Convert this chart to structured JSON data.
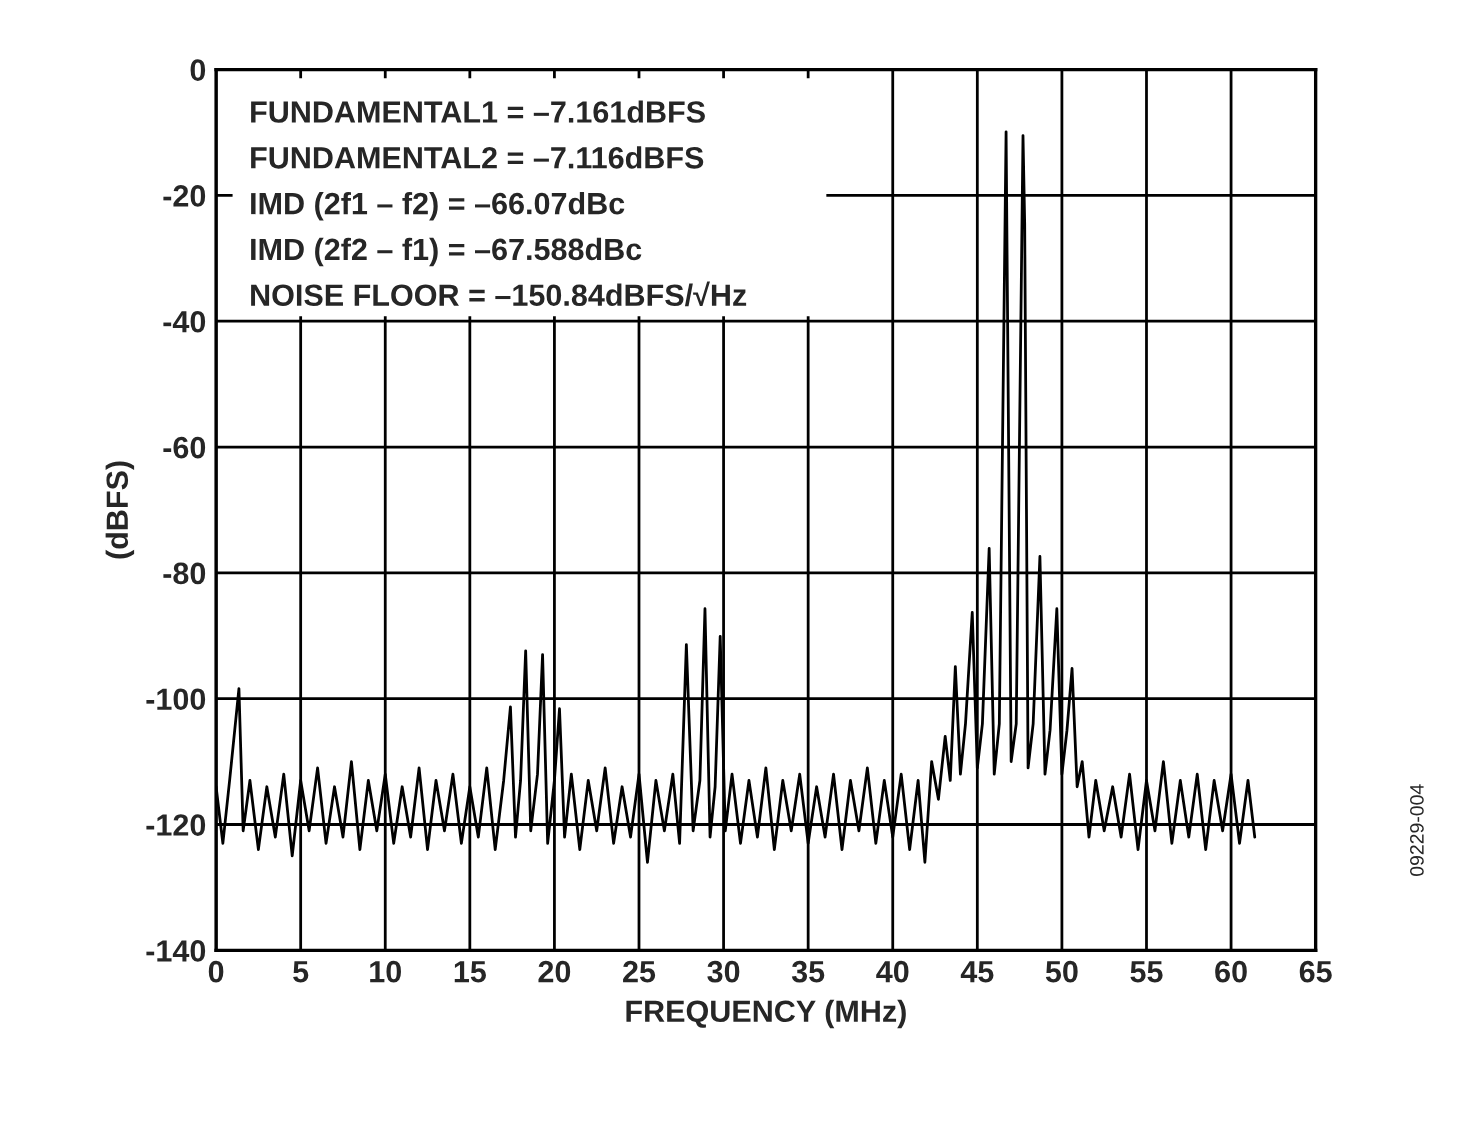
{
  "chart_data": {
    "type": "line",
    "xlabel": "FREQUENCY (MHz)",
    "ylabel": "(dBFS)",
    "xlim": [
      0,
      65
    ],
    "xticks": [
      0,
      5,
      10,
      15,
      20,
      25,
      30,
      35,
      40,
      45,
      50,
      55,
      60,
      65
    ],
    "ylim": [
      -140,
      0
    ],
    "yticks": [
      -140,
      -120,
      -100,
      -80,
      -60,
      -40,
      -20,
      0
    ],
    "grid": true,
    "legend": false,
    "marker": "none",
    "line_style": "solid",
    "annotations": [
      "FUNDAMENTAL1 = –7.161dBFS",
      "FUNDAMENTAL2 = –7.116dBFS",
      "IMD (2f1 – f2) = –66.07dBc",
      "IMD (2f2 – f1) = –67.588dBc",
      "NOISE FLOOR = –150.84dBFS/√Hz",
      "09229-004"
    ],
    "series": [
      {
        "color": "#000000",
        "x": [
          0,
          0.4,
          0.8,
          1.35,
          1.6,
          2.0,
          2.5,
          3.0,
          3.5,
          4.0,
          4.5,
          5.0,
          5.5,
          6.0,
          6.5,
          7.0,
          7.5,
          8.0,
          8.5,
          9.0,
          9.5,
          10.0,
          10.5,
          11.0,
          11.5,
          12.0,
          12.5,
          13.0,
          13.5,
          14.0,
          14.5,
          15.0,
          15.5,
          16.0,
          16.5,
          17.0,
          17.4,
          17.7,
          18.0,
          18.3,
          18.6,
          19.0,
          19.3,
          19.6,
          20.0,
          20.3,
          20.6,
          21,
          21.5,
          22,
          22.5,
          23,
          23.5,
          24,
          24.5,
          25,
          25.5,
          26,
          26.5,
          27,
          27.4,
          27.8,
          28.2,
          28.6,
          28.9,
          29.2,
          29.5,
          29.8,
          30.1,
          30.5,
          31,
          31.5,
          32,
          32.5,
          33,
          33.5,
          34,
          34.5,
          35,
          35.5,
          36,
          36.5,
          37,
          37.5,
          38,
          38.5,
          39,
          39.5,
          40,
          40.5,
          41,
          41.5,
          41.9,
          42.3,
          42.7,
          43.1,
          43.4,
          43.7,
          44.0,
          44.3,
          44.7,
          45.0,
          45.3,
          45.7,
          46.0,
          46.3,
          46.7,
          47.0,
          47.3,
          47.7,
          47.8,
          48.0,
          48.3,
          48.7,
          49.0,
          49.3,
          49.7,
          50.0,
          50.3,
          50.6,
          50.9,
          51.2,
          51.6,
          52,
          52.5,
          53,
          53.5,
          54,
          54.5,
          55,
          55.5,
          56,
          56.5,
          57,
          57.5,
          58,
          58.5,
          59,
          59.5,
          60,
          60.5,
          61,
          61.4
        ],
        "values": [
          -114,
          -123,
          -113,
          -98.4,
          -121,
          -113,
          -124,
          -114,
          -122,
          -112,
          -125,
          -113,
          -121,
          -111,
          -123,
          -114,
          -122,
          -110,
          -124,
          -113,
          -121,
          -112,
          -123,
          -114,
          -122,
          -111,
          -124,
          -113,
          -121,
          -112,
          -123,
          -114,
          -122,
          -111,
          -124,
          -113,
          -101.3,
          -122,
          -113,
          -92.4,
          -121,
          -112,
          -93,
          -123,
          -113,
          -101.6,
          -122,
          -112,
          -124,
          -113,
          -121,
          -111,
          -123,
          -114,
          -122,
          -112,
          -126,
          -113,
          -121,
          -112,
          -123,
          -91.4,
          -121,
          -113,
          -85.7,
          -122,
          -114,
          -90.1,
          -121,
          -112,
          -123,
          -113,
          -122,
          -111,
          -124,
          -113,
          -121,
          -112,
          -123,
          -114,
          -122,
          -112,
          -124,
          -113,
          -121,
          -111,
          -123,
          -113,
          -122,
          -112,
          -124,
          -113,
          -126,
          -110,
          -116,
          -106,
          -113,
          -94.9,
          -112,
          -104,
          -86.3,
          -111,
          -104,
          -76.1,
          -112,
          -104,
          -9.9,
          -110,
          -104,
          -10.5,
          -24.5,
          -111,
          -104,
          -77.4,
          -112,
          -105,
          -85.7,
          -112,
          -105,
          -95.2,
          -114,
          -110,
          -122,
          -113,
          -121,
          -114,
          -122,
          -112,
          -124,
          -113,
          -121,
          -110,
          -123,
          -113,
          -122,
          -112,
          -124,
          -113,
          -121,
          -112,
          -123,
          -113,
          -122
        ]
      }
    ]
  }
}
